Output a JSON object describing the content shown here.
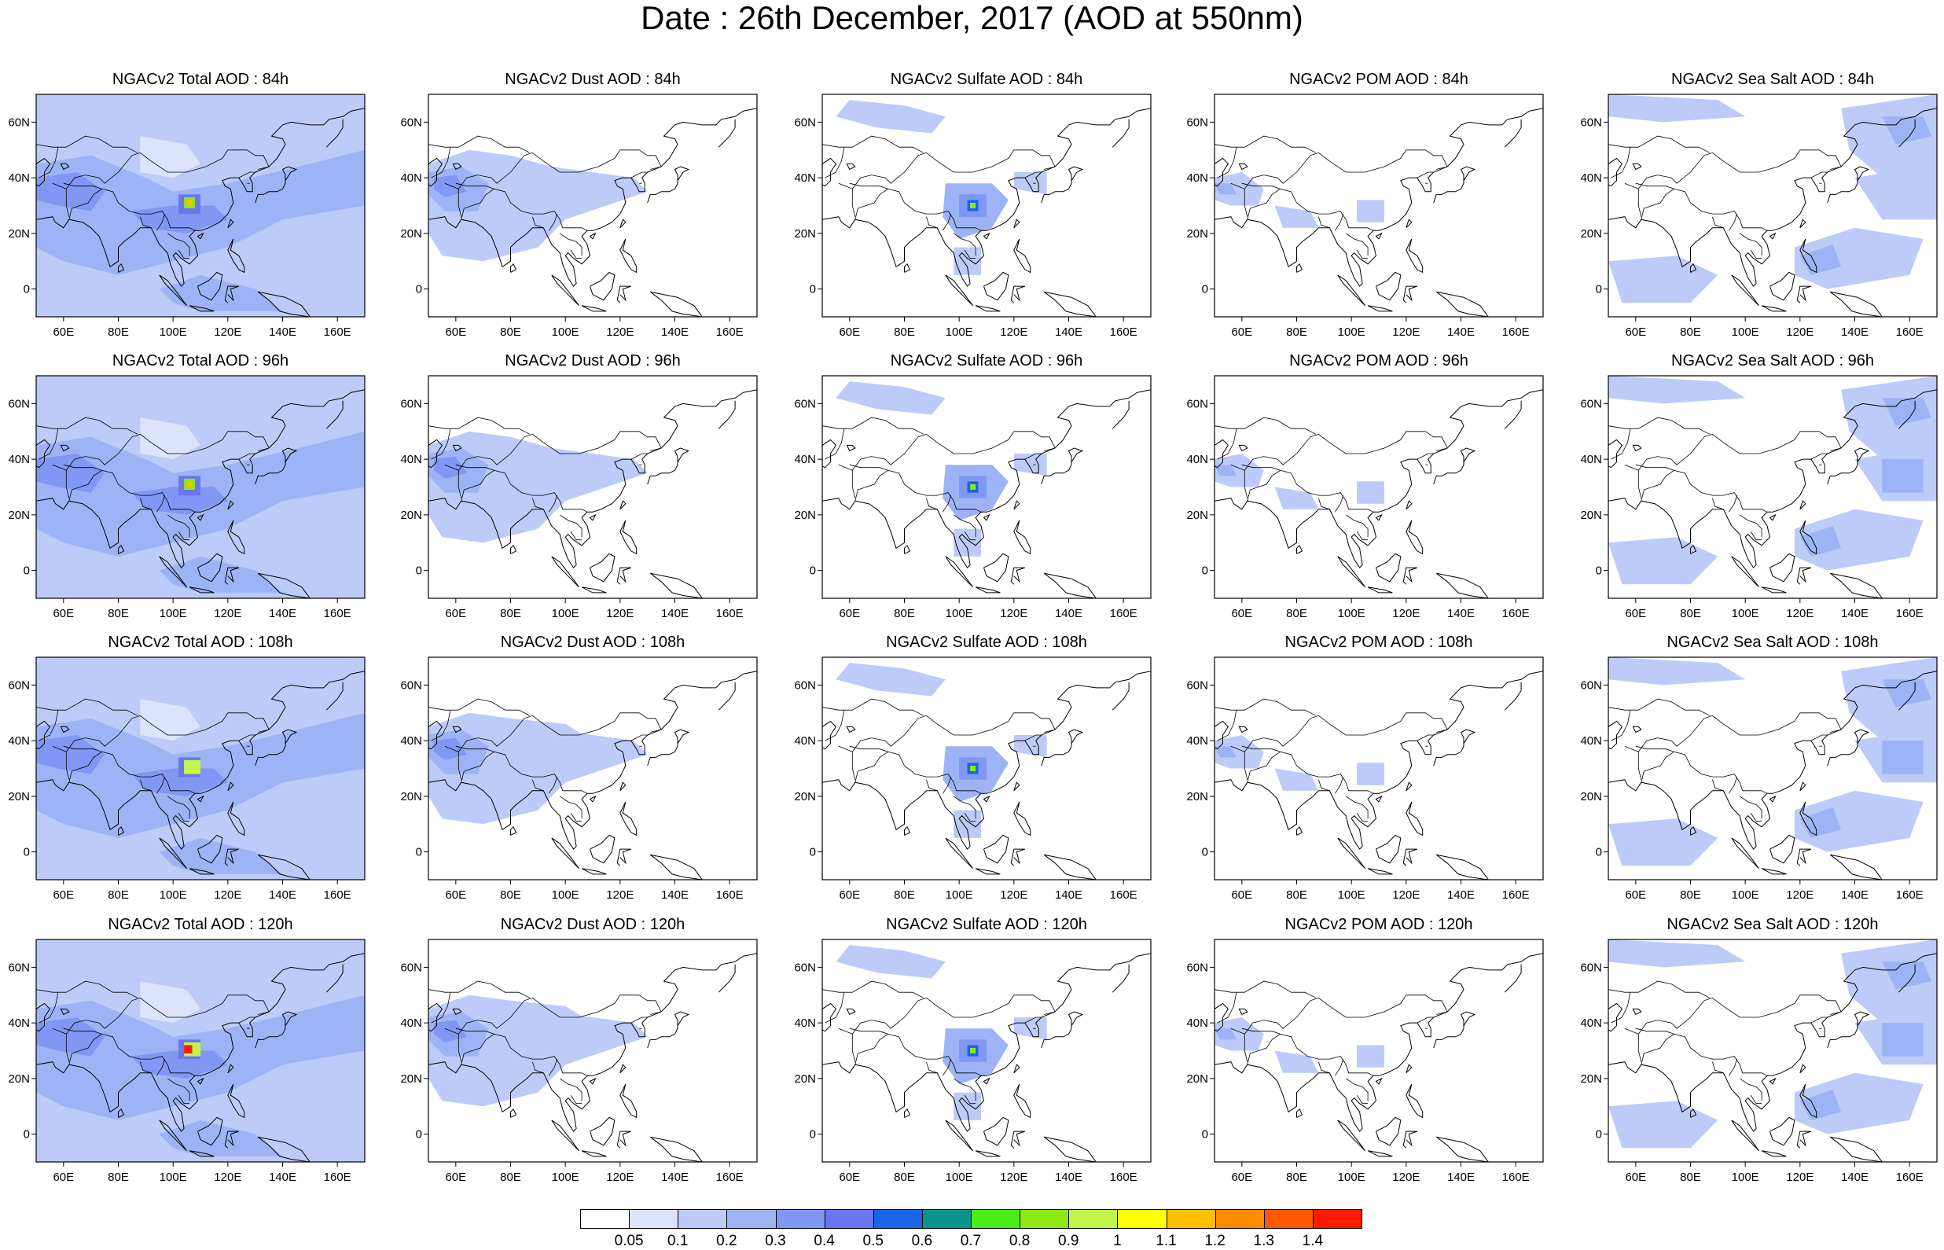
{
  "title": "Date : 26th December, 2017 (AOD at 550nm)",
  "map": {
    "lon_range": [
      50,
      170
    ],
    "lat_range": [
      -10,
      70
    ],
    "lon_ticks": [
      "60E",
      "80E",
      "100E",
      "120E",
      "140E",
      "160E"
    ],
    "lat_ticks": [
      "0",
      "20N",
      "40N",
      "60N"
    ],
    "coastline_color": "#000000"
  },
  "rows": [
    {
      "forecast_hour": "84h",
      "panels": [
        {
          "title": "NGACv2 Total AOD : 84h",
          "species": "total"
        },
        {
          "title": "NGACv2 Dust AOD : 84h",
          "species": "dust"
        },
        {
          "title": "NGACv2 Sulfate AOD : 84h",
          "species": "sulfate"
        },
        {
          "title": "NGACv2 POM AOD : 84h",
          "species": "pom"
        },
        {
          "title": "NGACv2 Sea Salt AOD : 84h",
          "species": "seasalt"
        }
      ]
    },
    {
      "forecast_hour": "96h",
      "panels": [
        {
          "title": "NGACv2 Total AOD : 96h",
          "species": "total"
        },
        {
          "title": "NGACv2 Dust AOD : 96h",
          "species": "dust"
        },
        {
          "title": "NGACv2 Sulfate AOD : 96h",
          "species": "sulfate"
        },
        {
          "title": "NGACv2 POM AOD : 96h",
          "species": "pom"
        },
        {
          "title": "NGACv2 Sea Salt AOD : 96h",
          "species": "seasalt"
        }
      ]
    },
    {
      "forecast_hour": "108h",
      "panels": [
        {
          "title": "NGACv2 Total AOD : 108h",
          "species": "total"
        },
        {
          "title": "NGACv2 Dust AOD : 108h",
          "species": "dust"
        },
        {
          "title": "NGACv2 Sulfate AOD : 108h",
          "species": "sulfate"
        },
        {
          "title": "NGACv2 POM AOD : 108h",
          "species": "pom"
        },
        {
          "title": "NGACv2 Sea Salt AOD : 108h",
          "species": "seasalt"
        }
      ]
    },
    {
      "forecast_hour": "120h",
      "panels": [
        {
          "title": "NGACv2 Total AOD : 120h",
          "species": "total"
        },
        {
          "title": "NGACv2 Dust AOD : 120h",
          "species": "dust"
        },
        {
          "title": "NGACv2 Sulfate AOD : 120h",
          "species": "sulfate"
        },
        {
          "title": "NGACv2 POM AOD : 120h",
          "species": "pom"
        },
        {
          "title": "NGACv2 Sea Salt  AOD : 120h",
          "species": "seasalt"
        }
      ]
    }
  ],
  "colorbar": {
    "labels": [
      "0.05",
      "0.1",
      "0.2",
      "0.3",
      "0.4",
      "0.5",
      "0.6",
      "0.7",
      "0.8",
      "0.9",
      "1",
      "1.1",
      "1.2",
      "1.3",
      "1.4"
    ],
    "colors": [
      "#ffffff",
      "#dce3fb",
      "#bccbf7",
      "#9db3f5",
      "#8097f3",
      "#6a75f0",
      "#1a64e6",
      "#07958e",
      "#4cec1a",
      "#8fe812",
      "#c2f54a",
      "#ffff00",
      "#ffbf00",
      "#ff8c00",
      "#ff5a00",
      "#ff1a00"
    ]
  }
}
